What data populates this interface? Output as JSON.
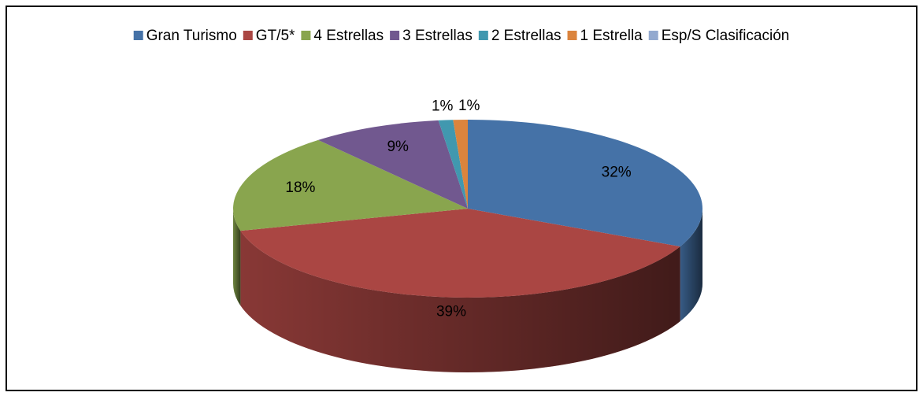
{
  "chart_data": {
    "type": "pie3d",
    "categories": [
      "Gran Turismo",
      "GT/5*",
      "4 Estrellas",
      "3 Estrellas",
      "2 Estrellas",
      "1 Estrella",
      "Esp/S Clasificación"
    ],
    "values": [
      32,
      39,
      18,
      9,
      1,
      1,
      0
    ],
    "value_labels": [
      "32%",
      "39%",
      "18%",
      "9%",
      "1%",
      "1%",
      null
    ],
    "colors": [
      "#4572a7",
      "#aa4643",
      "#89a54e",
      "#71588f",
      "#4198af",
      "#db843d",
      "#93a9cf"
    ],
    "legend": "top"
  }
}
